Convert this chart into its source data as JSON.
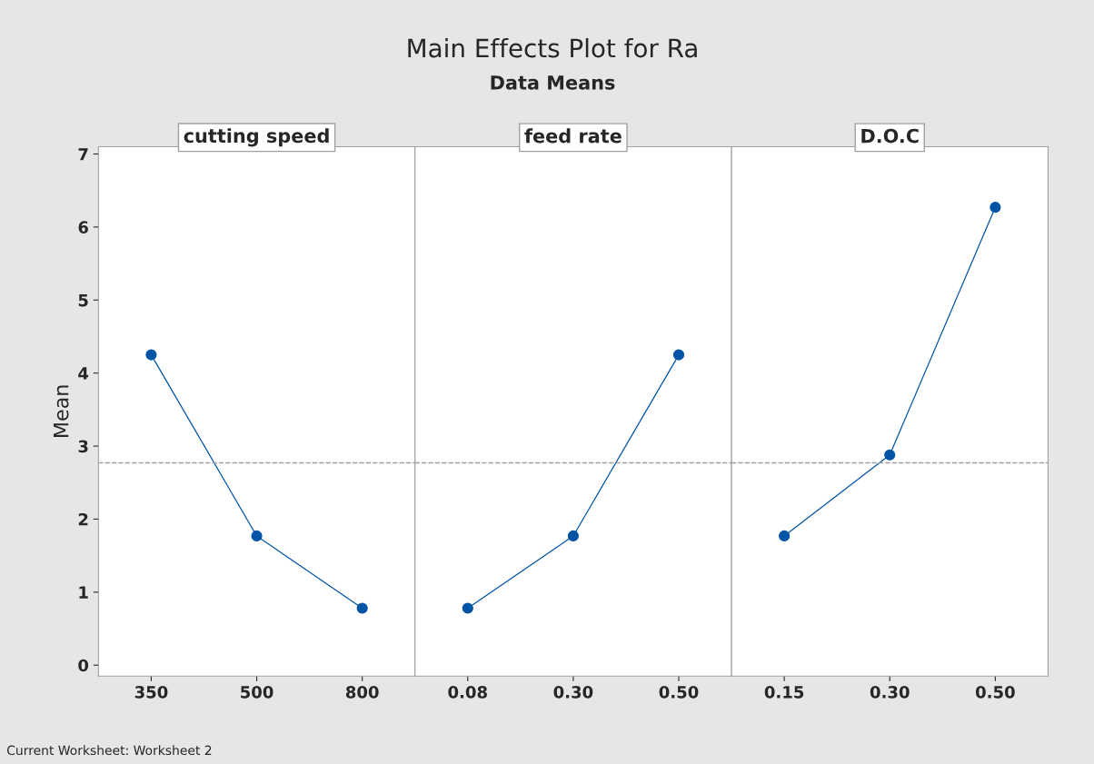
{
  "chart_data": [
    {
      "type": "line",
      "title": "cutting speed",
      "ylabel": "Mean",
      "categories": [
        "350",
        "500",
        "800"
      ],
      "series": [
        {
          "color": "#0054a6",
          "values": [
            4.25,
            1.77,
            0.78
          ]
        }
      ],
      "ylim": [
        -0.15,
        7.1
      ],
      "yticks": [
        0,
        1,
        2,
        3,
        4,
        5,
        6,
        7
      ],
      "marker": "circle",
      "line_style": "solid",
      "grid": false,
      "ref_lines": [
        {
          "axis": "y",
          "value": 2.77,
          "color": "#a0a0a0",
          "line_style": "dashed"
        }
      ],
      "annotations": [
        "Main Effects Plot for Ra",
        "Data Means",
        "Current Worksheet: Worksheet 2"
      ]
    },
    {
      "type": "line",
      "title": "feed rate",
      "categories": [
        "0.08",
        "0.30",
        "0.50"
      ],
      "series": [
        {
          "color": "#0054a6",
          "values": [
            0.78,
            1.77,
            4.25
          ]
        }
      ],
      "ylim": [
        -0.15,
        7.1
      ],
      "tick_labels": "x",
      "marker": "circle",
      "line_style": "solid",
      "grid": false,
      "ref_lines": [
        {
          "axis": "y",
          "value": 2.77,
          "color": "#a0a0a0",
          "line_style": "dashed"
        }
      ]
    },
    {
      "type": "line",
      "title": "D.O.C",
      "categories": [
        "0.15",
        "0.30",
        "0.50"
      ],
      "series": [
        {
          "color": "#0054a6",
          "values": [
            1.77,
            2.88,
            6.27
          ]
        }
      ],
      "ylim": [
        -0.15,
        7.1
      ],
      "tick_labels": "x",
      "marker": "circle",
      "line_style": "solid",
      "grid": false,
      "ref_lines": [
        {
          "axis": "y",
          "value": 2.77,
          "color": "#a0a0a0",
          "line_style": "dashed"
        }
      ]
    }
  ]
}
